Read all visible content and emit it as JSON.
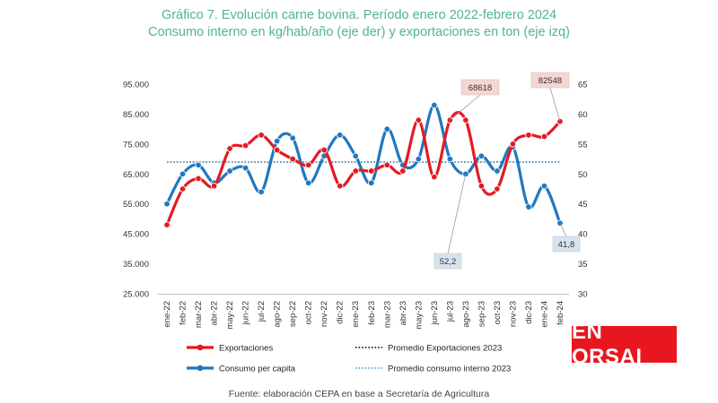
{
  "colors": {
    "title": "#4fb39a",
    "exportaciones": "#e31b23",
    "consumo": "#2177c0",
    "promedio_export": "#222222",
    "promedio_consumo": "#5aa9c9",
    "callout_export_bg": "#f6d6d3",
    "callout_consumo_bg": "#d6e3f1",
    "logo_bg": "#e8171f"
  },
  "logo": {
    "text": "EN ORSAI"
  },
  "source": "Fuente: elaboración CEPA en base a Secretaría de Agricultura",
  "chart_data": {
    "type": "line",
    "title": "Gráfico 7. Evolución carne bovina. Período enero 2022-febrero 2024",
    "subtitle": "Consumo interno en kg/hab/año (eje der) y exportaciones en ton (eje izq)",
    "categories": [
      "ene-22",
      "feb-22",
      "mar-22",
      "abr-22",
      "may-22",
      "jun-22",
      "jul-22",
      "ago-22",
      "sep-22",
      "oct-22",
      "nov-22",
      "dic-22",
      "ene-23",
      "feb-23",
      "mar-23",
      "abr-23",
      "may-23",
      "jun-23",
      "jul-23",
      "ago-23",
      "sep-23",
      "oct-23",
      "nov-23",
      "dic-23",
      "ene-24",
      "feb-24"
    ],
    "y_left": {
      "min": 25000,
      "max": 95000,
      "ticks": [
        "25.000",
        "35.000",
        "45.000",
        "55.000",
        "65.000",
        "75.000",
        "85.000",
        "95.000"
      ],
      "tick_values": [
        25000,
        35000,
        45000,
        55000,
        65000,
        75000,
        85000,
        95000
      ]
    },
    "y_right": {
      "min": 30,
      "max": 65,
      "ticks": [
        "30",
        "35",
        "40",
        "45",
        "50",
        "55",
        "60",
        "65"
      ],
      "tick_values": [
        30,
        35,
        40,
        45,
        50,
        55,
        60,
        65
      ]
    },
    "series": [
      {
        "name": "Exportaciones",
        "axis": "left",
        "color": "#e31b23",
        "values": [
          48000,
          60000,
          63500,
          61000,
          73500,
          74500,
          78000,
          73000,
          70000,
          68000,
          73000,
          61000,
          66000,
          66000,
          68000,
          66000,
          83000,
          64000,
          83000,
          83000,
          61000,
          60000,
          75000,
          78000,
          77500,
          82548
        ]
      },
      {
        "name": "Consumo per capita",
        "axis": "right",
        "color": "#2177c0",
        "values": [
          45,
          50,
          51.5,
          48.5,
          50.5,
          51,
          47,
          55.5,
          56,
          48.5,
          53,
          56.5,
          53,
          48.5,
          57.5,
          51.5,
          52.5,
          61.5,
          52.5,
          50,
          53,
          50.5,
          54.5,
          44.5,
          48,
          41.8
        ]
      }
    ],
    "reference_lines": [
      {
        "name": "Promedio Exportaciones 2023",
        "axis": "left",
        "value": 69000,
        "style": "dotted",
        "color": "#222222"
      },
      {
        "name": "Promedio consumo interno 2023",
        "axis": "right",
        "value": 52,
        "style": "dotted",
        "color": "#5aa9c9"
      }
    ],
    "annotations": [
      {
        "series": "Exportaciones",
        "category": "jul-23",
        "label": "68618"
      },
      {
        "series": "Exportaciones",
        "category": "feb-24",
        "label": "82548"
      },
      {
        "series": "Consumo per capita",
        "category": "ago-23",
        "label": "52,2"
      },
      {
        "series": "Consumo per capita",
        "category": "feb-24",
        "label": "41,8"
      }
    ],
    "legend": {
      "position": "bottom",
      "items": [
        {
          "label": "Exportaciones",
          "kind": "line-marker",
          "color": "#e31b23"
        },
        {
          "label": "Promedio Exportaciones 2023",
          "kind": "dotted",
          "color": "#222222"
        },
        {
          "label": "Consumo per capita",
          "kind": "line-marker",
          "color": "#2177c0"
        },
        {
          "label": "Promedio consumo interno 2023",
          "kind": "dotted",
          "color": "#5aa9c9"
        }
      ]
    },
    "grid": false
  }
}
